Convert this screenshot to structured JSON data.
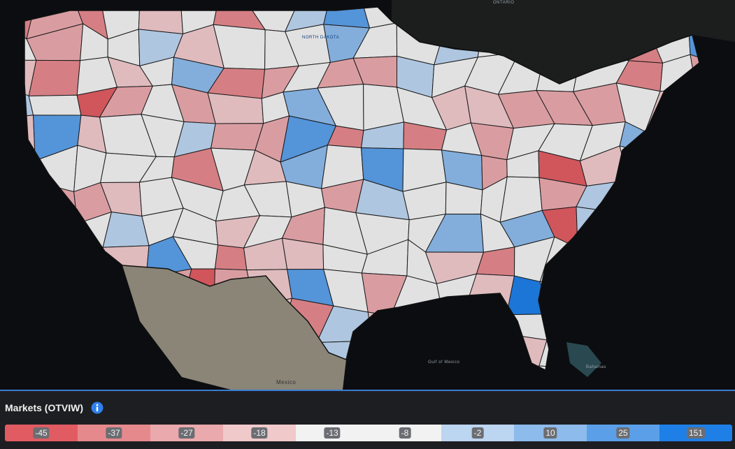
{
  "map_labels": [
    "ONTARIO",
    "NORTH DAKOTA",
    "Gulf of Mexico",
    "Mexico",
    "Bahamas"
  ],
  "legend": {
    "title": "Markets (OTVIW)",
    "values": [
      -45,
      -37,
      -27,
      -18,
      -13,
      -8,
      -2,
      10,
      25,
      151
    ],
    "colors": [
      "#e05c62",
      "#e5898d",
      "#eaa9ac",
      "#f0c9cb",
      "#f2f2f2",
      "#f2f2f2",
      "#bcd5f0",
      "#8dbbec",
      "#5a9fe8",
      "#1e7fe6"
    ]
  }
}
